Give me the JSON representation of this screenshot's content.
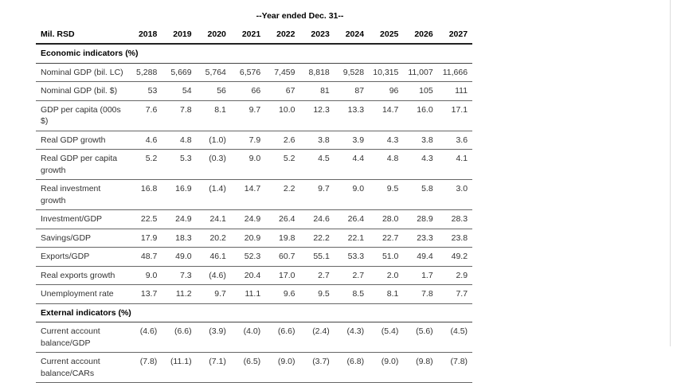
{
  "header": {
    "span_title": "--Year ended Dec. 31--",
    "stub": "Mil. RSD",
    "columns": [
      "2018",
      "2019",
      "2020",
      "2021",
      "2022",
      "2023",
      "2024",
      "2025",
      "2026",
      "2027"
    ]
  },
  "sections": [
    {
      "title": "Economic indicators (%)",
      "rows": [
        {
          "label": "Nominal GDP (bil. LC)",
          "values": [
            "5,288",
            "5,669",
            "5,764",
            "6,576",
            "7,459",
            "8,818",
            "9,528",
            "10,315",
            "11,007",
            "11,666"
          ]
        },
        {
          "label": "Nominal GDP (bil. $)",
          "values": [
            "53",
            "54",
            "56",
            "66",
            "67",
            "81",
            "87",
            "96",
            "105",
            "111"
          ]
        },
        {
          "label": "GDP per capita (000s $)",
          "values": [
            "7.6",
            "7.8",
            "8.1",
            "9.7",
            "10.0",
            "12.3",
            "13.3",
            "14.7",
            "16.0",
            "17.1"
          ]
        },
        {
          "label": "Real GDP growth",
          "values": [
            "4.6",
            "4.8",
            "(1.0)",
            "7.9",
            "2.6",
            "3.8",
            "3.9",
            "4.3",
            "3.8",
            "3.6"
          ]
        },
        {
          "label": "Real GDP per capita growth",
          "values": [
            "5.2",
            "5.3",
            "(0.3)",
            "9.0",
            "5.2",
            "4.5",
            "4.4",
            "4.8",
            "4.3",
            "4.1"
          ]
        },
        {
          "label": "Real investment growth",
          "values": [
            "16.8",
            "16.9",
            "(1.4)",
            "14.7",
            "2.2",
            "9.7",
            "9.0",
            "9.5",
            "5.8",
            "3.0"
          ]
        },
        {
          "label": "Investment/GDP",
          "values": [
            "22.5",
            "24.9",
            "24.1",
            "24.9",
            "26.4",
            "24.6",
            "26.4",
            "28.0",
            "28.9",
            "28.3"
          ]
        },
        {
          "label": "Savings/GDP",
          "values": [
            "17.9",
            "18.3",
            "20.2",
            "20.9",
            "19.8",
            "22.2",
            "22.1",
            "22.7",
            "23.3",
            "23.8"
          ]
        },
        {
          "label": "Exports/GDP",
          "values": [
            "48.7",
            "49.0",
            "46.1",
            "52.3",
            "60.7",
            "55.1",
            "53.3",
            "51.0",
            "49.4",
            "49.2"
          ]
        },
        {
          "label": "Real exports growth",
          "values": [
            "9.0",
            "7.3",
            "(4.6)",
            "20.4",
            "17.0",
            "2.7",
            "2.7",
            "2.0",
            "1.7",
            "2.9"
          ]
        },
        {
          "label": "Unemployment rate",
          "values": [
            "13.7",
            "11.2",
            "9.7",
            "11.1",
            "9.6",
            "9.5",
            "8.5",
            "8.1",
            "7.8",
            "7.7"
          ]
        }
      ]
    },
    {
      "title": "External indicators (%)",
      "rows": [
        {
          "label": "Current account balance/GDP",
          "values": [
            "(4.6)",
            "(6.6)",
            "(3.9)",
            "(4.0)",
            "(6.6)",
            "(2.4)",
            "(4.3)",
            "(5.4)",
            "(5.6)",
            "(4.5)"
          ]
        },
        {
          "label": "Current account balance/CARs",
          "values": [
            "(7.8)",
            "(11.1)",
            "(7.1)",
            "(6.5)",
            "(9.0)",
            "(3.7)",
            "(6.8)",
            "(9.0)",
            "(9.8)",
            "(7.8)"
          ]
        }
      ]
    }
  ]
}
